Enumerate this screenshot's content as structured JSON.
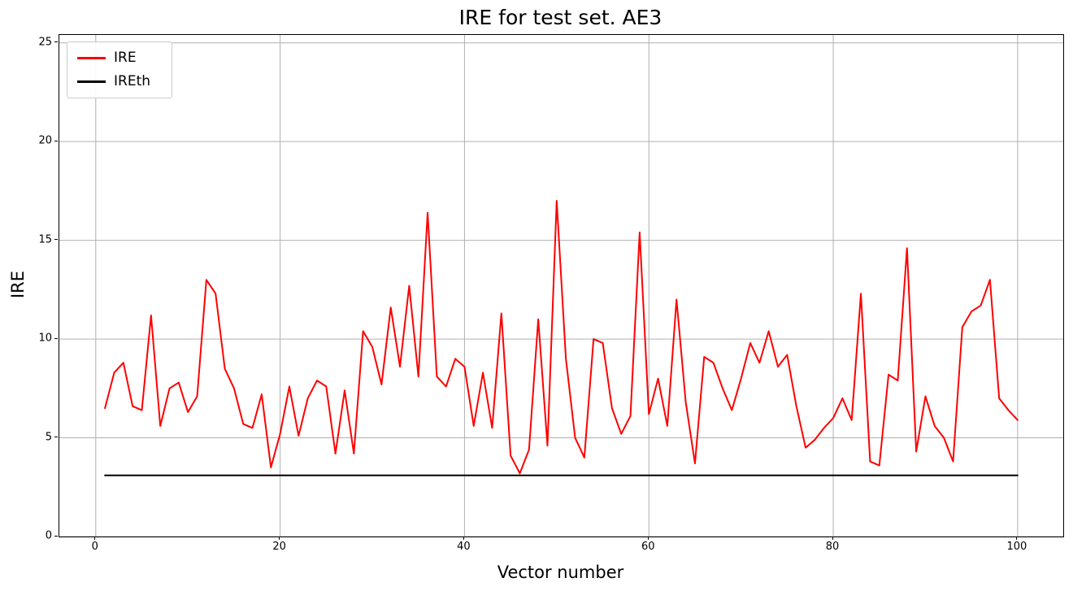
{
  "chart_data": {
    "type": "line",
    "title": "IRE for test set. AE3",
    "xlabel": "Vector number",
    "ylabel": "IRE",
    "xlim": [
      -3.95,
      104.95
    ],
    "ylim": [
      0,
      25.4
    ],
    "xticks": [
      0,
      20,
      40,
      60,
      80,
      100
    ],
    "yticks": [
      0,
      5,
      10,
      15,
      20,
      25
    ],
    "grid": true,
    "grid_color": "#b0b0b0",
    "legend_position": "upper left",
    "x_start": 1,
    "x_step": 1,
    "series": [
      {
        "name": "IRE",
        "color": "#ff0000",
        "line_width": 2,
        "values": [
          6.5,
          8.3,
          8.8,
          6.6,
          6.4,
          11.2,
          5.6,
          7.5,
          7.8,
          6.3,
          7.1,
          13.0,
          12.3,
          8.5,
          7.5,
          5.7,
          5.5,
          7.2,
          3.5,
          5.2,
          7.6,
          5.1,
          7.0,
          7.9,
          7.6,
          4.2,
          7.4,
          4.2,
          10.4,
          9.6,
          7.7,
          11.6,
          8.6,
          12.7,
          8.1,
          16.4,
          8.1,
          7.6,
          9.0,
          8.6,
          5.6,
          8.3,
          5.5,
          11.3,
          4.1,
          3.2,
          4.4,
          11.0,
          4.6,
          17.0,
          9.0,
          5.0,
          4.0,
          10.0,
          9.8,
          6.5,
          5.2,
          6.1,
          15.4,
          6.2,
          8.0,
          5.6,
          12.0,
          6.8,
          3.7,
          9.1,
          8.8,
          7.5,
          6.4,
          8.0,
          9.8,
          8.8,
          10.4,
          8.6,
          9.2,
          6.6,
          4.5,
          4.9,
          5.5,
          6.0,
          7.0,
          5.9,
          12.3,
          3.8,
          3.6,
          8.2,
          7.9,
          14.6,
          4.3,
          7.1,
          5.6,
          5.0,
          3.8,
          10.6,
          11.4,
          11.7,
          13.0,
          7.0,
          6.4,
          5.9
        ]
      },
      {
        "name": "IREth",
        "color": "#000000",
        "line_width": 2,
        "constant": 3.1
      }
    ]
  }
}
